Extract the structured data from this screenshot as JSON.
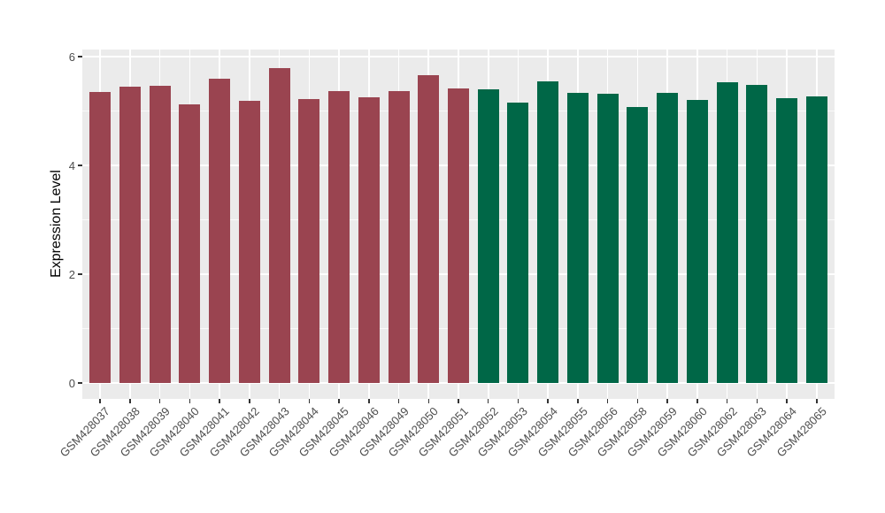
{
  "figure": {
    "background": "#FFFFFF",
    "panel_background": "#EBEBEB",
    "grid_major_color": "#FFFFFF",
    "grid_minor_color": "#F7F7F7",
    "tick_mark_color": "#333333",
    "axis_text_color": "#4D4D4D",
    "axis_title_color": "#000000",
    "group_colors": {
      "red_group": "#9A4450",
      "green_group": "#006747"
    }
  },
  "chart_data": {
    "type": "bar",
    "title": "",
    "xlabel": "",
    "ylabel": "Expression Level",
    "legend_position": "none",
    "grid": true,
    "y_ticks": [
      0,
      2,
      4,
      6
    ],
    "y_minor_ticks": [
      1,
      3,
      5
    ],
    "ylim": [
      -0.29,
      6.13
    ],
    "categories": [
      "GSM428037",
      "GSM428038",
      "GSM428039",
      "GSM428040",
      "GSM428041",
      "GSM428042",
      "GSM428043",
      "GSM428044",
      "GSM428045",
      "GSM428046",
      "GSM428049",
      "GSM428050",
      "GSM428051",
      "GSM428052",
      "GSM428053",
      "GSM428054",
      "GSM428055",
      "GSM428056",
      "GSM428058",
      "GSM428059",
      "GSM428060",
      "GSM428062",
      "GSM428063",
      "GSM428064",
      "GSM428065"
    ],
    "values": [
      5.35,
      5.44,
      5.47,
      5.12,
      5.6,
      5.18,
      5.79,
      5.22,
      5.37,
      5.26,
      5.37,
      5.66,
      5.41,
      5.4,
      5.16,
      5.54,
      5.34,
      5.32,
      5.07,
      5.33,
      5.21,
      5.53,
      5.48,
      5.23,
      5.27
    ],
    "bar_colors": [
      "#9A4450",
      "#9A4450",
      "#9A4450",
      "#9A4450",
      "#9A4450",
      "#9A4450",
      "#9A4450",
      "#9A4450",
      "#9A4450",
      "#9A4450",
      "#9A4450",
      "#9A4450",
      "#9A4450",
      "#006747",
      "#006747",
      "#006747",
      "#006747",
      "#006747",
      "#006747",
      "#006747",
      "#006747",
      "#006747",
      "#006747",
      "#006747",
      "#006747"
    ]
  }
}
